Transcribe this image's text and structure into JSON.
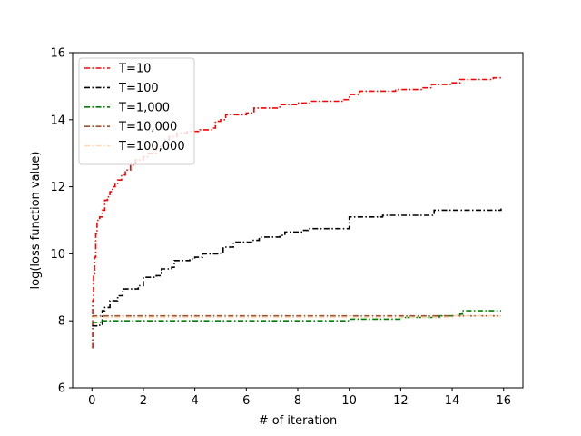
{
  "chart_data": {
    "type": "line",
    "title": "",
    "xlabel": "# of iteration",
    "ylabel": "log(loss function value)",
    "xlim": [
      -0.75,
      16.75
    ],
    "ylim": [
      6,
      16
    ],
    "xticks": [
      0,
      2,
      4,
      6,
      8,
      10,
      12,
      14,
      16
    ],
    "yticks": [
      6,
      8,
      10,
      12,
      14,
      16
    ],
    "grid": false,
    "legend_position": "top-left",
    "series": [
      {
        "name": "T=10",
        "color": "#ff0000",
        "style": "dashdot",
        "points": [
          [
            0.0,
            7.2
          ],
          [
            0.03,
            8.6
          ],
          [
            0.06,
            9.4
          ],
          [
            0.1,
            9.9
          ],
          [
            0.15,
            10.6
          ],
          [
            0.2,
            11.0
          ],
          [
            0.3,
            11.1
          ],
          [
            0.4,
            11.3
          ],
          [
            0.5,
            11.6
          ],
          [
            0.6,
            11.7
          ],
          [
            0.7,
            11.85
          ],
          [
            0.8,
            12.0
          ],
          [
            0.9,
            12.1
          ],
          [
            1.0,
            12.2
          ],
          [
            1.15,
            12.35
          ],
          [
            1.3,
            12.5
          ],
          [
            1.5,
            12.65
          ],
          [
            1.7,
            12.8
          ],
          [
            2.0,
            12.9
          ],
          [
            2.2,
            13.0
          ],
          [
            2.5,
            13.2
          ],
          [
            2.8,
            13.4
          ],
          [
            3.0,
            13.5
          ],
          [
            3.3,
            13.6
          ],
          [
            3.7,
            13.65
          ],
          [
            4.2,
            13.7
          ],
          [
            4.7,
            13.75
          ],
          [
            4.8,
            13.95
          ],
          [
            5.0,
            14.0
          ],
          [
            5.2,
            14.15
          ],
          [
            6.0,
            14.2
          ],
          [
            6.3,
            14.35
          ],
          [
            7.0,
            14.35
          ],
          [
            7.3,
            14.45
          ],
          [
            8.0,
            14.5
          ],
          [
            8.5,
            14.55
          ],
          [
            9.8,
            14.6
          ],
          [
            10.0,
            14.75
          ],
          [
            10.4,
            14.85
          ],
          [
            11.5,
            14.85
          ],
          [
            11.8,
            14.9
          ],
          [
            12.7,
            14.9
          ],
          [
            12.8,
            14.95
          ],
          [
            13.2,
            15.05
          ],
          [
            14.0,
            15.1
          ],
          [
            14.3,
            15.2
          ],
          [
            15.5,
            15.2
          ],
          [
            15.6,
            15.25
          ],
          [
            15.9,
            15.27
          ]
        ]
      },
      {
        "name": "T=100",
        "color": "#000000",
        "style": "dashdot",
        "points": [
          [
            0.0,
            7.85
          ],
          [
            0.3,
            7.9
          ],
          [
            0.4,
            8.3
          ],
          [
            0.5,
            8.4
          ],
          [
            0.7,
            8.6
          ],
          [
            1.0,
            8.75
          ],
          [
            1.2,
            8.95
          ],
          [
            1.8,
            9.05
          ],
          [
            2.0,
            9.3
          ],
          [
            2.5,
            9.35
          ],
          [
            2.7,
            9.55
          ],
          [
            3.1,
            9.6
          ],
          [
            3.2,
            9.8
          ],
          [
            3.8,
            9.85
          ],
          [
            4.0,
            9.9
          ],
          [
            4.3,
            10.0
          ],
          [
            5.0,
            10.05
          ],
          [
            5.1,
            10.2
          ],
          [
            5.5,
            10.35
          ],
          [
            6.2,
            10.4
          ],
          [
            6.5,
            10.5
          ],
          [
            7.3,
            10.55
          ],
          [
            7.5,
            10.65
          ],
          [
            8.2,
            10.7
          ],
          [
            8.4,
            10.75
          ],
          [
            9.9,
            10.75
          ],
          [
            10.0,
            11.1
          ],
          [
            11.0,
            11.1
          ],
          [
            11.3,
            11.15
          ],
          [
            13.2,
            11.15
          ],
          [
            13.3,
            11.3
          ],
          [
            14.5,
            11.3
          ],
          [
            15.0,
            11.3
          ],
          [
            15.9,
            11.35
          ]
        ]
      },
      {
        "name": "T=1,000",
        "color": "#008000",
        "style": "dashdot",
        "points": [
          [
            0.0,
            7.95
          ],
          [
            0.3,
            7.95
          ],
          [
            0.4,
            8.0
          ],
          [
            9.8,
            8.0
          ],
          [
            10.0,
            8.05
          ],
          [
            11.5,
            8.05
          ],
          [
            12.0,
            8.1
          ],
          [
            13.0,
            8.1
          ],
          [
            13.5,
            8.15
          ],
          [
            14.3,
            8.2
          ],
          [
            14.4,
            8.3
          ],
          [
            15.9,
            8.3
          ]
        ]
      },
      {
        "name": "T=10,000",
        "color": "#a0522d",
        "style": "dashdot",
        "points": [
          [
            0.0,
            8.15
          ],
          [
            5.0,
            8.15
          ],
          [
            10.0,
            8.15
          ],
          [
            13.0,
            8.15
          ],
          [
            14.0,
            8.15
          ],
          [
            15.9,
            8.15
          ]
        ]
      },
      {
        "name": "T=100,000",
        "color": "#ffdab9",
        "style": "dashdot",
        "points": [
          [
            0.0,
            8.1
          ],
          [
            5.0,
            8.1
          ],
          [
            10.0,
            8.1
          ],
          [
            13.0,
            8.1
          ],
          [
            14.0,
            8.15
          ],
          [
            15.9,
            8.15
          ]
        ]
      }
    ]
  }
}
